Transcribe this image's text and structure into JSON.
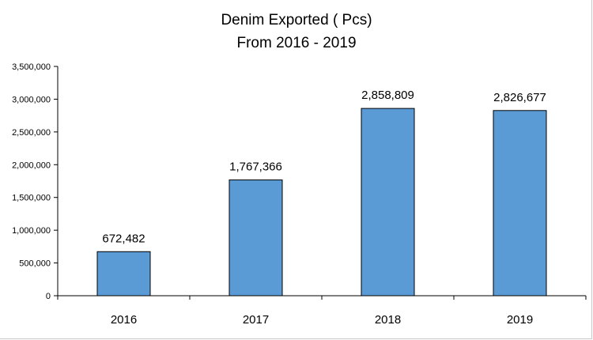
{
  "chart_data": {
    "type": "bar",
    "title": "Denim Exported ( Pcs)",
    "subtitle": "From 2016 - 2019",
    "xlabel": "",
    "ylabel": "",
    "categories": [
      "2016",
      "2017",
      "2018",
      "2019"
    ],
    "values": [
      672482,
      1767366,
      2858809,
      2826677
    ],
    "value_labels": [
      "672,482",
      "1,767,366",
      "2,858,809",
      "2,826,677"
    ],
    "ylim": [
      0,
      3500000
    ],
    "yticks": [
      0,
      500000,
      1000000,
      1500000,
      2000000,
      2500000,
      3000000,
      3500000
    ],
    "ytick_labels": [
      "0",
      "500,000",
      "1,000,000",
      "1,500,000",
      "2,000,000",
      "2,500,000",
      "3,000,000",
      "3,500,000"
    ],
    "grid": false,
    "legend": "none",
    "bar_color": "#5b9bd5",
    "bar_edge_color": "#000000"
  }
}
